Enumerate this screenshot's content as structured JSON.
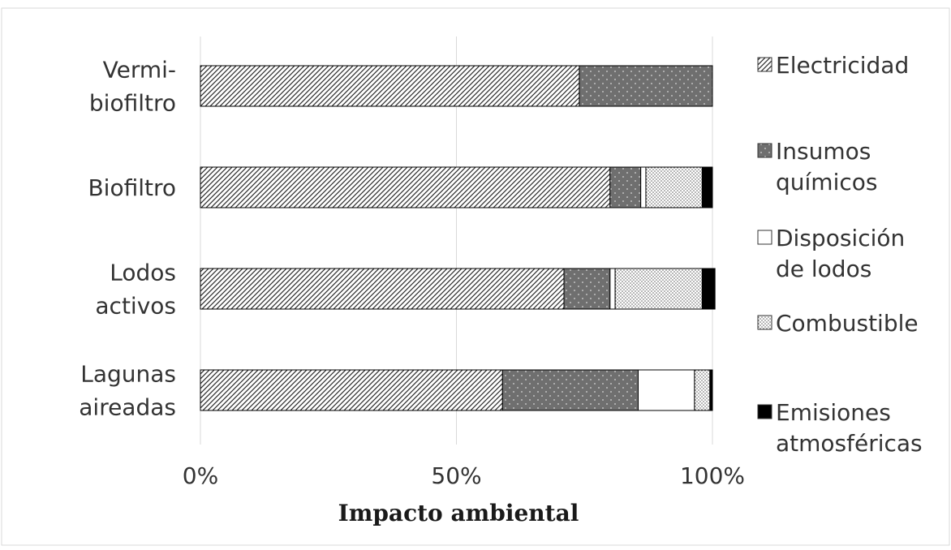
{
  "chart_data": {
    "type": "bar",
    "orientation": "horizontal",
    "stacked": "percent",
    "categories": [
      [
        "Vermi-",
        "biofiltro"
      ],
      [
        "Biofiltro"
      ],
      [
        "Lodos",
        "activos"
      ],
      [
        "Lagunas",
        "aireadas"
      ]
    ],
    "series": [
      {
        "name": [
          "Electricidad"
        ],
        "pattern": "diagonal-hatch",
        "values": [
          74,
          80,
          71,
          59
        ]
      },
      {
        "name": [
          "Insumos",
          "químicos"
        ],
        "pattern": "dark-dotted",
        "values": [
          26,
          6,
          9,
          26.5
        ]
      },
      {
        "name": [
          "Disposición",
          "de lodos"
        ],
        "pattern": "white",
        "values": [
          0,
          1,
          1,
          11
        ]
      },
      {
        "name": [
          "Combustible"
        ],
        "pattern": "light-dotted",
        "values": [
          0,
          11,
          17,
          3
        ]
      },
      {
        "name": [
          "Emisiones",
          "atmosféricas"
        ],
        "pattern": "black",
        "values": [
          0,
          2,
          2.5,
          0.5
        ]
      }
    ],
    "xlim": [
      0,
      100
    ],
    "x_ticks": [
      "0%",
      "50%",
      "100%"
    ],
    "xlabel": "Impacto ambiental",
    "ylabel": "",
    "grid": "vertical",
    "legend_position": "right"
  }
}
